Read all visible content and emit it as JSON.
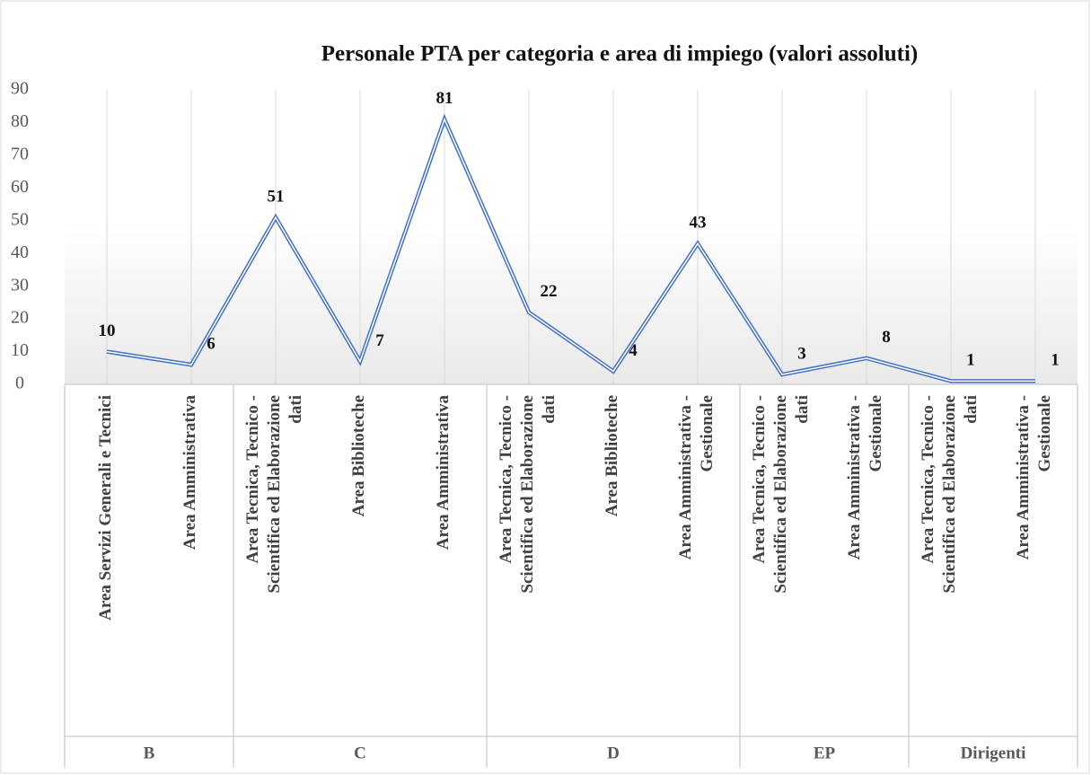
{
  "chart_data": {
    "type": "line",
    "title": "Personale PTA per categoria e area di impiego (valori assoluti)",
    "groups": [
      {
        "name": "B",
        "labels": [
          [
            "Area Servizi Generali e Tecnici"
          ],
          [
            "Area Amministrativa"
          ]
        ]
      },
      {
        "name": "C",
        "labels": [
          [
            "Area Tecnica, Tecnico -",
            "Scientifica ed Elaborazione",
            "dati"
          ],
          [
            "Area Biblioteche"
          ],
          [
            "Area Amministrativa"
          ]
        ]
      },
      {
        "name": "D",
        "labels": [
          [
            "Area Tecnica, Tecnico -",
            "Scientifica ed Elaborazione",
            "dati"
          ],
          [
            "Area Biblioteche"
          ],
          [
            "Area Amministrativa -",
            "Gestionale"
          ]
        ]
      },
      {
        "name": "EP",
        "labels": [
          [
            "Area Tecnica, Tecnico -",
            "Scientifica ed Elaborazione",
            "dati"
          ],
          [
            "Area Amministrativa -",
            "Gestionale"
          ]
        ]
      },
      {
        "name": "Dirigenti",
        "labels": [
          [
            "Area Tecnica, Tecnico -",
            "Scientifica ed Elaborazione",
            "dati"
          ],
          [
            "Area Amministrativa -",
            "Gestionale"
          ]
        ]
      }
    ],
    "values": [
      10,
      6,
      51,
      7,
      81,
      22,
      4,
      43,
      3,
      8,
      1,
      1
    ],
    "color": "#4472c4",
    "ylim": [
      0,
      90
    ],
    "yticks": [
      0,
      10,
      20,
      30,
      40,
      50,
      60,
      70,
      80,
      90
    ],
    "grid": true
  }
}
